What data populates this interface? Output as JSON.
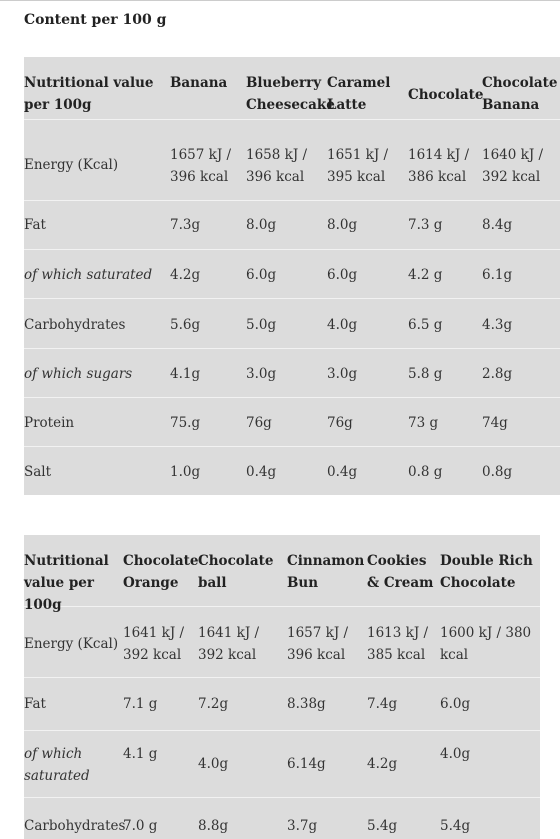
{
  "heading": "Content per 100 g",
  "table1": {
    "columns": [
      "Nutritional value per 100g",
      "Banana",
      "Blueberry Cheesecake",
      "Caramel Latte",
      "Chocolate",
      "Chocolate Banana"
    ],
    "rows": [
      [
        "Energy (Kcal)",
        "1657 kJ / 396 kcal",
        "1658 kJ / 396 kcal",
        "1651 kJ / 395 kcal",
        "1614 kJ / 386 kcal",
        "1640 kJ / 392 kcal"
      ],
      [
        "Fat",
        "7.3g",
        "8.0g",
        "8.0g",
        "7.3 g",
        "8.4g"
      ],
      [
        "of which saturated",
        "4.2g",
        "6.0g",
        "6.0g",
        "4.2 g",
        "6.1g"
      ],
      [
        "Carbohydrates",
        "5.6g",
        "5.0g",
        "4.0g",
        "6.5 g",
        "4.3g"
      ],
      [
        "of which sugars",
        "4.1g",
        "3.0g",
        "3.0g",
        "5.8 g",
        "2.8g"
      ],
      [
        "Protein",
        "75.g",
        "76g",
        "76g",
        "73 g",
        "74g"
      ],
      [
        "Salt",
        "1.0g",
        "0.4g",
        "0.4g",
        "0.8 g",
        "0.8g"
      ]
    ]
  },
  "table2": {
    "columns": [
      "Nutritional value per 100g",
      "Chocolate Orange",
      "Chocolate ball",
      "Cinnamon Bun",
      "Cookies & Cream",
      "Double Rich Chocolate"
    ],
    "rows": [
      [
        "Energy (Kcal)",
        "1641 kJ / 392 kcal",
        "1641 kJ / 392 kcal",
        "1657 kJ / 396 kcal",
        "1613 kJ / 385 kcal",
        "1600 kJ / 380 kcal"
      ],
      [
        "Fat",
        "7.1 g",
        "7.2g",
        "8.38g",
        "7.4g",
        "6.0g"
      ],
      [
        "of which saturated",
        "4.1 g",
        "4.0g",
        "6.14g",
        "4.2g",
        "4.0g"
      ],
      [
        "Carbohydrates",
        "7.0 g",
        "8.8g",
        "3.7g",
        "5.4g",
        "5.4g"
      ]
    ]
  }
}
